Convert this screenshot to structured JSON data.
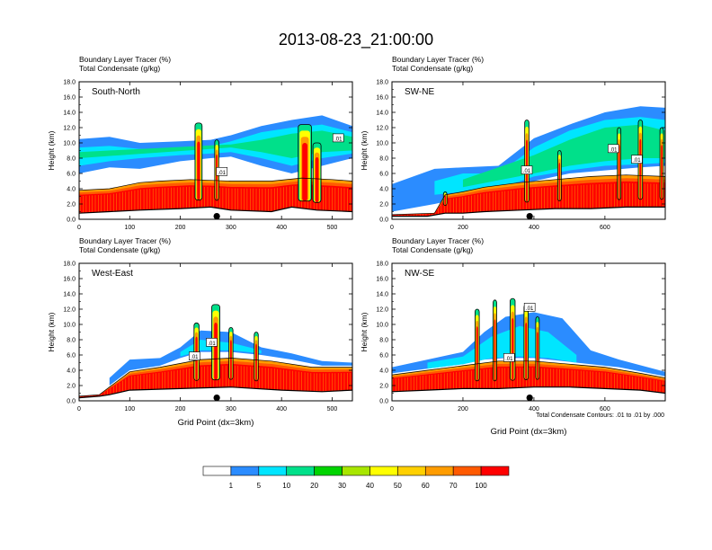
{
  "figure": {
    "title": "2013-08-23_21:00:00",
    "footnote": "Total Condensate Contours: .01 to .01 by .000"
  },
  "palette": [
    "#ffffff",
    "#2b8cff",
    "#00e5ff",
    "#00e08a",
    "#00d400",
    "#a8e600",
    "#ffff00",
    "#ffd000",
    "#ff9c00",
    "#ff5a00",
    "#ff0000"
  ],
  "chart_data": [
    {
      "type": "heatmap",
      "panel": "South-North",
      "header_lines": [
        "Boundary Layer Tracer   (%)",
        "Total Condensate   (g/kg)"
      ],
      "ylabel": "Height (km)",
      "xlabel": "",
      "xlim": [
        0,
        540
      ],
      "ylim": [
        0,
        18
      ],
      "xticks": [
        "0",
        "100",
        "200",
        "300",
        "400",
        "500"
      ],
      "xtick_values": [
        0,
        100,
        200,
        300,
        400,
        500
      ],
      "yticks": [
        "0.0",
        "2.0",
        "4.0",
        "6.0",
        "8.0",
        "10.0",
        "12.0",
        "14.0",
        "16.0",
        "18.0"
      ],
      "ytick_values": [
        0,
        2,
        4,
        6,
        8,
        10,
        12,
        14,
        16,
        18
      ],
      "terrain": [
        [
          0,
          0.8
        ],
        [
          60,
          1.0
        ],
        [
          120,
          1.2
        ],
        [
          200,
          1.4
        ],
        [
          260,
          1.6
        ],
        [
          300,
          1.2
        ],
        [
          380,
          1.0
        ],
        [
          420,
          1.6
        ],
        [
          470,
          1.2
        ],
        [
          540,
          1.0
        ]
      ],
      "boundary_layer_top": [
        [
          0,
          3.8
        ],
        [
          60,
          4.0
        ],
        [
          120,
          4.8
        ],
        [
          160,
          5.0
        ],
        [
          220,
          5.2
        ],
        [
          300,
          5.0
        ],
        [
          380,
          5.0
        ],
        [
          440,
          5.4
        ],
        [
          500,
          5.2
        ],
        [
          540,
          5.0
        ]
      ],
      "upper_layers": [
        {
          "level": 1,
          "bounds": [
            [
              0,
              6.0,
              10.5
            ],
            [
              60,
              6.8,
              10.8
            ],
            [
              120,
              6.6,
              10.0
            ],
            [
              200,
              7.6,
              10.2
            ],
            [
              260,
              8.0,
              10.4
            ],
            [
              300,
              8.2,
              11.0
            ],
            [
              360,
              7.0,
              12.2
            ],
            [
              420,
              6.0,
              13.0
            ],
            [
              480,
              7.0,
              13.6
            ],
            [
              540,
              8.0,
              12.2
            ]
          ]
        },
        {
          "level": 2,
          "bounds": [
            [
              0,
              7.0,
              9.4
            ],
            [
              60,
              7.6,
              9.6
            ],
            [
              120,
              8.0,
              9.2
            ],
            [
              200,
              8.4,
              9.2
            ],
            [
              260,
              8.6,
              9.6
            ],
            [
              300,
              8.8,
              10.2
            ],
            [
              360,
              8.0,
              11.4
            ],
            [
              420,
              7.0,
              12.0
            ],
            [
              480,
              8.0,
              12.4
            ],
            [
              540,
              8.6,
              11.4
            ]
          ]
        },
        {
          "level": 3,
          "bounds": [
            [
              0,
              8.0,
              8.8
            ],
            [
              300,
              9.4,
              9.8
            ],
            [
              360,
              8.8,
              10.4
            ],
            [
              420,
              8.0,
              11.2
            ],
            [
              480,
              8.8,
              11.6
            ],
            [
              540,
              9.0,
              10.8
            ]
          ]
        }
      ],
      "convective_towers": [
        {
          "x": 236,
          "width": 14,
          "top": 12.6
        },
        {
          "x": 272,
          "width": 8,
          "top": 10.4
        },
        {
          "x": 446,
          "width": 26,
          "top": 12.4
        },
        {
          "x": 470,
          "width": 16,
          "top": 10.0
        }
      ],
      "contour_labels": [
        {
          "x": 282,
          "y": 6.2,
          "text": ".01"
        },
        {
          "x": 512,
          "y": 10.6,
          "text": ".01"
        }
      ],
      "marker_x": 272
    },
    {
      "type": "heatmap",
      "panel": "SW-NE",
      "header_lines": [
        "Boundary Layer Tracer   (%)",
        "Total Condensate   (g/kg)"
      ],
      "ylabel": "Height (km)",
      "xlabel": "",
      "xlim": [
        0,
        770
      ],
      "ylim": [
        0,
        18
      ],
      "xticks": [
        "0",
        "200",
        "400",
        "600"
      ],
      "xtick_values": [
        0,
        200,
        400,
        600
      ],
      "yticks": [
        "0.0",
        "2.0",
        "4.0",
        "6.0",
        "8.0",
        "10.0",
        "12.0",
        "14.0",
        "16.0",
        "18.0"
      ],
      "ytick_values": [
        0,
        2,
        4,
        6,
        8,
        10,
        12,
        14,
        16,
        18
      ],
      "terrain": [
        [
          0,
          0.4
        ],
        [
          100,
          0.4
        ],
        [
          150,
          0.8
        ],
        [
          200,
          0.8
        ],
        [
          260,
          1.0
        ],
        [
          360,
          1.2
        ],
        [
          460,
          1.4
        ],
        [
          560,
          1.4
        ],
        [
          660,
          1.6
        ],
        [
          770,
          1.6
        ]
      ],
      "boundary_layer_top": [
        [
          0,
          0.6
        ],
        [
          120,
          0.8
        ],
        [
          150,
          3.2
        ],
        [
          200,
          3.6
        ],
        [
          260,
          4.2
        ],
        [
          360,
          4.8
        ],
        [
          460,
          5.2
        ],
        [
          560,
          5.6
        ],
        [
          660,
          5.8
        ],
        [
          770,
          5.6
        ]
      ],
      "upper_layers": [
        {
          "level": 1,
          "bounds": [
            [
              0,
              1.0,
              4.6
            ],
            [
              120,
              2.0,
              6.6
            ],
            [
              200,
              2.8,
              6.8
            ],
            [
              300,
              3.2,
              7.0
            ],
            [
              400,
              5.0,
              10.6
            ],
            [
              500,
              6.0,
              12.4
            ],
            [
              600,
              6.4,
              14.0
            ],
            [
              700,
              6.8,
              14.8
            ],
            [
              770,
              7.0,
              14.6
            ]
          ]
        },
        {
          "level": 2,
          "bounds": [
            [
              120,
              3.2,
              5.0
            ],
            [
              200,
              3.6,
              6.0
            ],
            [
              300,
              4.0,
              6.0
            ],
            [
              400,
              5.6,
              9.4
            ],
            [
              500,
              6.4,
              11.6
            ],
            [
              600,
              7.0,
              13.0
            ],
            [
              700,
              7.2,
              13.4
            ],
            [
              770,
              7.4,
              13.0
            ]
          ]
        },
        {
          "level": 3,
          "bounds": [
            [
              200,
              4.2,
              5.2
            ],
            [
              400,
              6.0,
              8.4
            ],
            [
              500,
              7.0,
              10.4
            ],
            [
              600,
              7.6,
              12.0
            ],
            [
              700,
              8.0,
              12.4
            ],
            [
              770,
              8.0,
              11.6
            ]
          ]
        }
      ],
      "convective_towers": [
        {
          "x": 150,
          "width": 10,
          "top": 3.6
        },
        {
          "x": 380,
          "width": 12,
          "top": 13.0
        },
        {
          "x": 472,
          "width": 10,
          "top": 9.0
        },
        {
          "x": 640,
          "width": 10,
          "top": 12.0
        },
        {
          "x": 700,
          "width": 12,
          "top": 13.0
        },
        {
          "x": 760,
          "width": 10,
          "top": 12.0
        }
      ],
      "contour_labels": [
        {
          "x": 380,
          "y": 6.4,
          "text": ".01"
        },
        {
          "x": 624,
          "y": 9.2,
          "text": ".01"
        },
        {
          "x": 690,
          "y": 7.8,
          "text": ".01"
        }
      ],
      "marker_x": 388
    },
    {
      "type": "heatmap",
      "panel": "West-East",
      "header_lines": [
        "Boundary Layer Tracer   (%)",
        "Total Condensate   (g/kg)"
      ],
      "ylabel": "Height (km)",
      "xlabel": "Grid Point (dx=3km)",
      "xlim": [
        0,
        540
      ],
      "ylim": [
        0,
        18
      ],
      "xticks": [
        "0",
        "100",
        "200",
        "300",
        "400",
        "500"
      ],
      "xtick_values": [
        0,
        100,
        200,
        300,
        400,
        500
      ],
      "yticks": [
        "0.0",
        "2.0",
        "4.0",
        "6.0",
        "8.0",
        "10.0",
        "12.0",
        "14.0",
        "16.0",
        "18.0"
      ],
      "ytick_values": [
        0,
        2,
        4,
        6,
        8,
        10,
        12,
        14,
        16,
        18
      ],
      "terrain": [
        [
          0,
          0.4
        ],
        [
          40,
          0.6
        ],
        [
          60,
          0.8
        ],
        [
          100,
          1.4
        ],
        [
          200,
          1.6
        ],
        [
          300,
          1.8
        ],
        [
          400,
          1.4
        ],
        [
          480,
          1.2
        ],
        [
          540,
          1.4
        ]
      ],
      "boundary_layer_top": [
        [
          0,
          0.6
        ],
        [
          40,
          0.8
        ],
        [
          60,
          1.8
        ],
        [
          100,
          3.8
        ],
        [
          160,
          4.4
        ],
        [
          240,
          5.4
        ],
        [
          300,
          5.6
        ],
        [
          380,
          5.2
        ],
        [
          460,
          4.4
        ],
        [
          540,
          4.4
        ]
      ],
      "upper_layers": [
        {
          "level": 1,
          "bounds": [
            [
              60,
              2.0,
              3.0
            ],
            [
              100,
              4.0,
              5.4
            ],
            [
              160,
              4.6,
              5.6
            ],
            [
              200,
              5.6,
              7.0
            ],
            [
              240,
              6.4,
              9.2
            ],
            [
              300,
              6.4,
              9.0
            ],
            [
              360,
              6.0,
              7.0
            ],
            [
              420,
              5.4,
              6.2
            ],
            [
              480,
              4.6,
              5.2
            ],
            [
              540,
              4.6,
              5.0
            ]
          ]
        },
        {
          "level": 2,
          "bounds": [
            [
              200,
              5.8,
              6.4
            ],
            [
              240,
              6.6,
              8.0
            ],
            [
              300,
              6.6,
              7.6
            ],
            [
              360,
              6.2,
              6.6
            ]
          ]
        }
      ],
      "convective_towers": [
        {
          "x": 232,
          "width": 10,
          "top": 10.2
        },
        {
          "x": 270,
          "width": 16,
          "top": 12.6
        },
        {
          "x": 300,
          "width": 8,
          "top": 9.6
        },
        {
          "x": 350,
          "width": 8,
          "top": 9.0
        }
      ],
      "contour_labels": [
        {
          "x": 228,
          "y": 5.8,
          "text": ".01"
        },
        {
          "x": 262,
          "y": 7.6,
          "text": ".01"
        }
      ],
      "marker_x": 272
    },
    {
      "type": "heatmap",
      "panel": "NW-SE",
      "header_lines": [
        "Boundary Layer Tracer   (%)",
        "Total Condensate   (g/kg)"
      ],
      "ylabel": "Height (km)",
      "xlabel": "Grid Point (dx=3km)",
      "xlim": [
        0,
        770
      ],
      "ylim": [
        0,
        18
      ],
      "xticks": [
        "0",
        "200",
        "400",
        "600"
      ],
      "xtick_values": [
        0,
        200,
        400,
        600
      ],
      "yticks": [
        "0.0",
        "2.0",
        "4.0",
        "6.0",
        "8.0",
        "10.0",
        "12.0",
        "14.0",
        "16.0",
        "18.0"
      ],
      "ytick_values": [
        0,
        2,
        4,
        6,
        8,
        10,
        12,
        14,
        16,
        18
      ],
      "terrain": [
        [
          0,
          1.2
        ],
        [
          100,
          1.4
        ],
        [
          200,
          1.6
        ],
        [
          300,
          1.6
        ],
        [
          400,
          1.8
        ],
        [
          500,
          1.8
        ],
        [
          600,
          1.6
        ],
        [
          700,
          1.4
        ],
        [
          770,
          1.0
        ]
      ],
      "boundary_layer_top": [
        [
          0,
          3.4
        ],
        [
          100,
          4.0
        ],
        [
          200,
          4.6
        ],
        [
          300,
          5.2
        ],
        [
          400,
          5.2
        ],
        [
          500,
          4.8
        ],
        [
          600,
          4.4
        ],
        [
          700,
          3.6
        ],
        [
          770,
          3.0
        ]
      ],
      "upper_layers": [
        {
          "level": 1,
          "bounds": [
            [
              0,
              3.6,
              4.4
            ],
            [
              100,
              4.2,
              5.4
            ],
            [
              200,
              4.8,
              6.4
            ],
            [
              260,
              5.4,
              9.0
            ],
            [
              320,
              5.6,
              11.0
            ],
            [
              400,
              5.6,
              11.6
            ],
            [
              480,
              5.2,
              10.8
            ],
            [
              560,
              4.8,
              6.6
            ],
            [
              640,
              4.4,
              5.4
            ],
            [
              770,
              3.2,
              3.8
            ]
          ]
        },
        {
          "level": 2,
          "bounds": [
            [
              100,
              4.2,
              5.0
            ],
            [
              200,
              4.8,
              5.8
            ],
            [
              280,
              5.6,
              8.4
            ],
            [
              360,
              5.8,
              9.8
            ],
            [
              440,
              5.6,
              9.0
            ],
            [
              520,
              5.0,
              6.0
            ]
          ]
        }
      ],
      "convective_towers": [
        {
          "x": 240,
          "width": 12,
          "top": 12.0
        },
        {
          "x": 290,
          "width": 10,
          "top": 13.2
        },
        {
          "x": 340,
          "width": 14,
          "top": 13.4
        },
        {
          "x": 378,
          "width": 12,
          "top": 12.6
        },
        {
          "x": 410,
          "width": 10,
          "top": 11.0
        }
      ],
      "contour_labels": [
        {
          "x": 330,
          "y": 5.6,
          "text": ".01"
        },
        {
          "x": 388,
          "y": 12.2,
          "text": ".01"
        }
      ],
      "marker_x": 388
    }
  ],
  "colorbar": {
    "levels": [
      "1",
      "5",
      "10",
      "20",
      "30",
      "40",
      "50",
      "60",
      "70",
      "100"
    ]
  }
}
